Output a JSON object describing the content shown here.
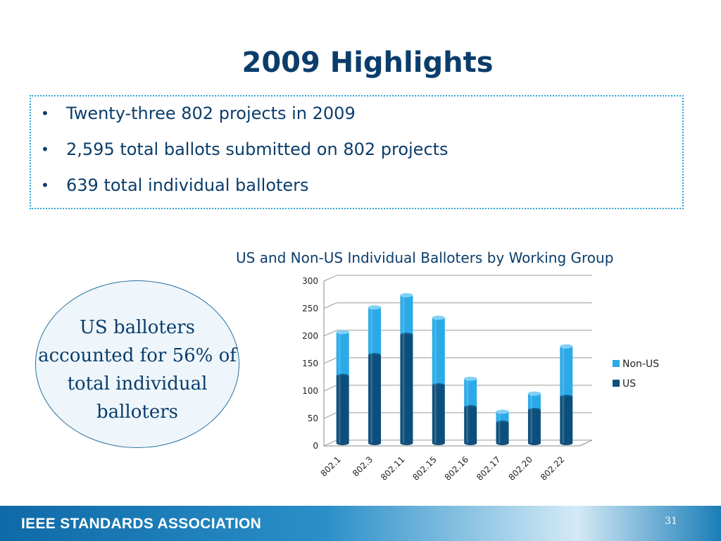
{
  "slide": {
    "title": "2009 Highlights",
    "bullets": [
      "Twenty-three 802 projects in 2009",
      "2,595 total ballots submitted on 802 projects",
      "639 total individual balloters"
    ],
    "callout": "US balloters accounted for 56% of total individual balloters",
    "footer_logo": "IEEE STANDARDS ASSOCIATION",
    "page_number": "31"
  },
  "colors": {
    "title": "#0b3d6b",
    "us": "#0d4f7c",
    "non_us": "#2aaae8",
    "accent_border": "#2aa3d6"
  },
  "chart_data": {
    "type": "bar",
    "stacked": true,
    "style": "3d-cylinder",
    "title": "US and Non-US Individual Balloters by Working Group",
    "categories": [
      "802.1",
      "802.3",
      "802.11",
      "802.15",
      "802.16",
      "802.17",
      "802.20",
      "802.22"
    ],
    "series": [
      {
        "name": "US",
        "values": [
          122,
          160,
          197,
          105,
          65,
          37,
          60,
          84
        ]
      },
      {
        "name": "Non-US",
        "values": [
          80,
          87,
          72,
          123,
          52,
          20,
          30,
          92
        ]
      }
    ],
    "ylim": [
      0,
      300
    ],
    "yticks": [
      0,
      50,
      100,
      150,
      200,
      250,
      300
    ],
    "grid": true,
    "legend": "right"
  }
}
